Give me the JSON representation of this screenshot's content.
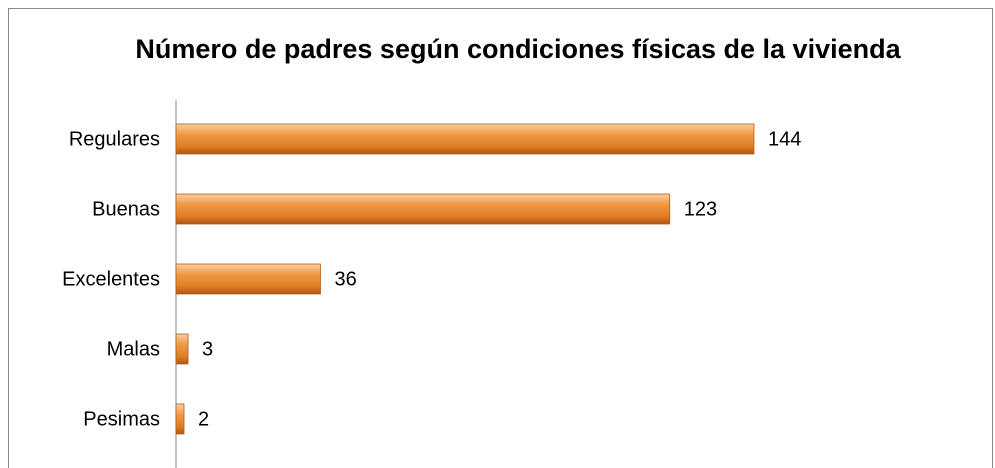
{
  "chart_data": {
    "type": "bar",
    "orientation": "horizontal",
    "title": "Número de padres según condiciones físicas de la vivienda",
    "categories": [
      "Regulares",
      "Buenas",
      "Excelentes",
      "Malas",
      "Pesimas"
    ],
    "values": [
      144,
      123,
      36,
      3,
      2
    ],
    "color": "#e8872c"
  }
}
